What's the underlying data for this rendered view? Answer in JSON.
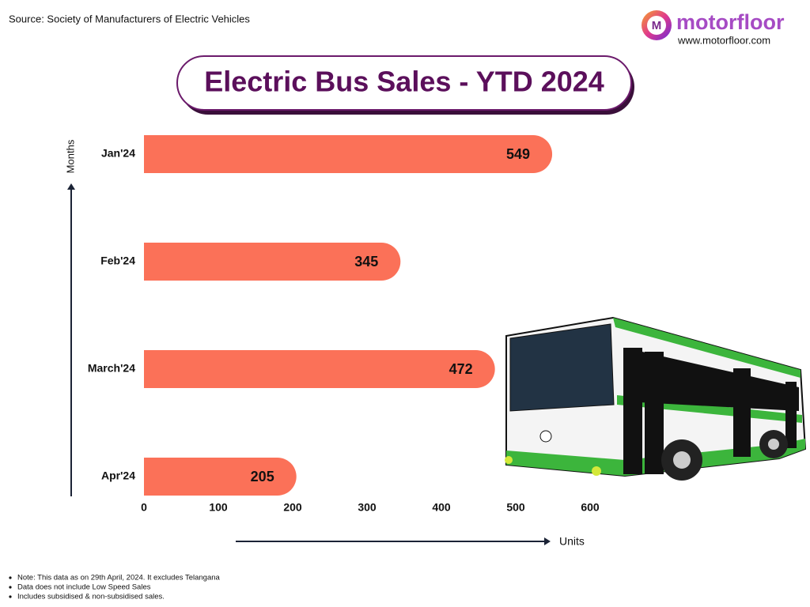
{
  "chart_data": {
    "type": "bar",
    "orientation": "horizontal",
    "title": "Electric Bus Sales - YTD 2024",
    "source": "Source: Society of Manufacturers of Electric Vehicles",
    "brand": "motorfloor",
    "brand_url": "www.motorfloor.com",
    "categories": [
      "Jan'24",
      "Feb'24",
      "March'24",
      "Apr'24"
    ],
    "values": [
      549,
      345,
      472,
      205
    ],
    "color": "#fb7158",
    "xlim": [
      0,
      600
    ],
    "xticks": [
      0,
      100,
      200,
      300,
      400,
      500,
      600
    ],
    "xlabel": "Units",
    "ylabel": "Months",
    "grid": false,
    "notes": [
      "Note: This data as on 29th April, 2024. It excludes Telangana",
      "Data does not include Low Speed Sales",
      "Includes subsidised & non-subsidised sales."
    ]
  }
}
